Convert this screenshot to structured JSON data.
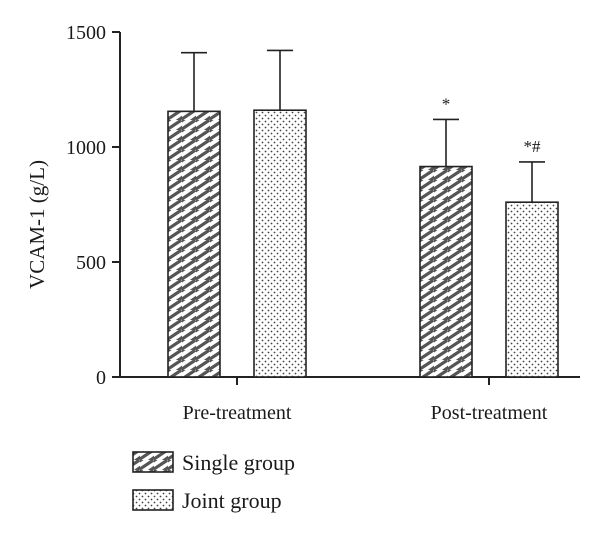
{
  "chart_data": {
    "type": "bar",
    "ylabel": "VCAM-1 (g/L)",
    "ylim": [
      0,
      1500
    ],
    "yticks": [
      "0",
      "500",
      "1000",
      "1500"
    ],
    "categories": [
      "Pre-treatment",
      "Post-treatment"
    ],
    "series": [
      {
        "name": "Single group",
        "pattern": "hatch-dash",
        "values": [
          1155,
          915
        ],
        "errors": [
          255,
          205
        ],
        "annotations": [
          "",
          "*"
        ]
      },
      {
        "name": "Joint group",
        "pattern": "dots",
        "values": [
          1160,
          760
        ],
        "errors": [
          260,
          175
        ],
        "annotations": [
          "",
          "*#"
        ]
      }
    ],
    "legend_position": "bottom-left",
    "grid": false
  }
}
